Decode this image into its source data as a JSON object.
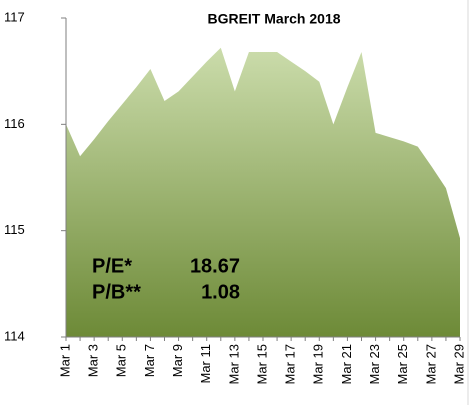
{
  "chart_data": {
    "type": "area",
    "title": "BGREIT March 2018",
    "categories": [
      "Mar 1",
      null,
      "Mar 3",
      null,
      "Mar 5",
      null,
      "Mar 7",
      null,
      "Mar 9",
      null,
      "Mar 11",
      null,
      "Mar 13",
      null,
      "Mar 15",
      null,
      "Mar 17",
      null,
      "Mar 19",
      null,
      "Mar 21",
      null,
      "Mar 23",
      null,
      "Mar 25",
      null,
      "Mar 27",
      null,
      "Mar 29"
    ],
    "values": [
      116.0,
      115.7,
      115.86,
      116.03,
      116.19,
      116.35,
      116.52,
      116.22,
      116.31,
      116.45,
      116.59,
      116.72,
      116.31,
      116.68,
      116.68,
      116.68,
      116.59,
      116.5,
      116.4,
      116.0,
      116.35,
      116.68,
      115.92,
      115.88,
      115.84,
      115.79,
      115.6,
      115.4,
      114.93
    ],
    "color_top": "#cbdcab",
    "color_bottom": "#6d8a37",
    "ylim": [
      114,
      117
    ],
    "yticks": [
      114,
      115,
      116,
      117
    ],
    "annotations": [
      {
        "label": "P/E*",
        "value": 18.67
      },
      {
        "label": "P/B**",
        "value": 1.08
      }
    ]
  }
}
